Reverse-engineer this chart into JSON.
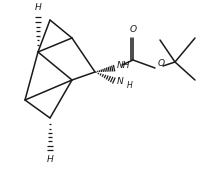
{
  "bg_color": "#ffffff",
  "line_color": "#1a1a1a",
  "figsize": [
    2.11,
    1.9
  ],
  "dpi": 100,
  "xlim": [
    0,
    211
  ],
  "ylim": [
    0,
    190
  ]
}
